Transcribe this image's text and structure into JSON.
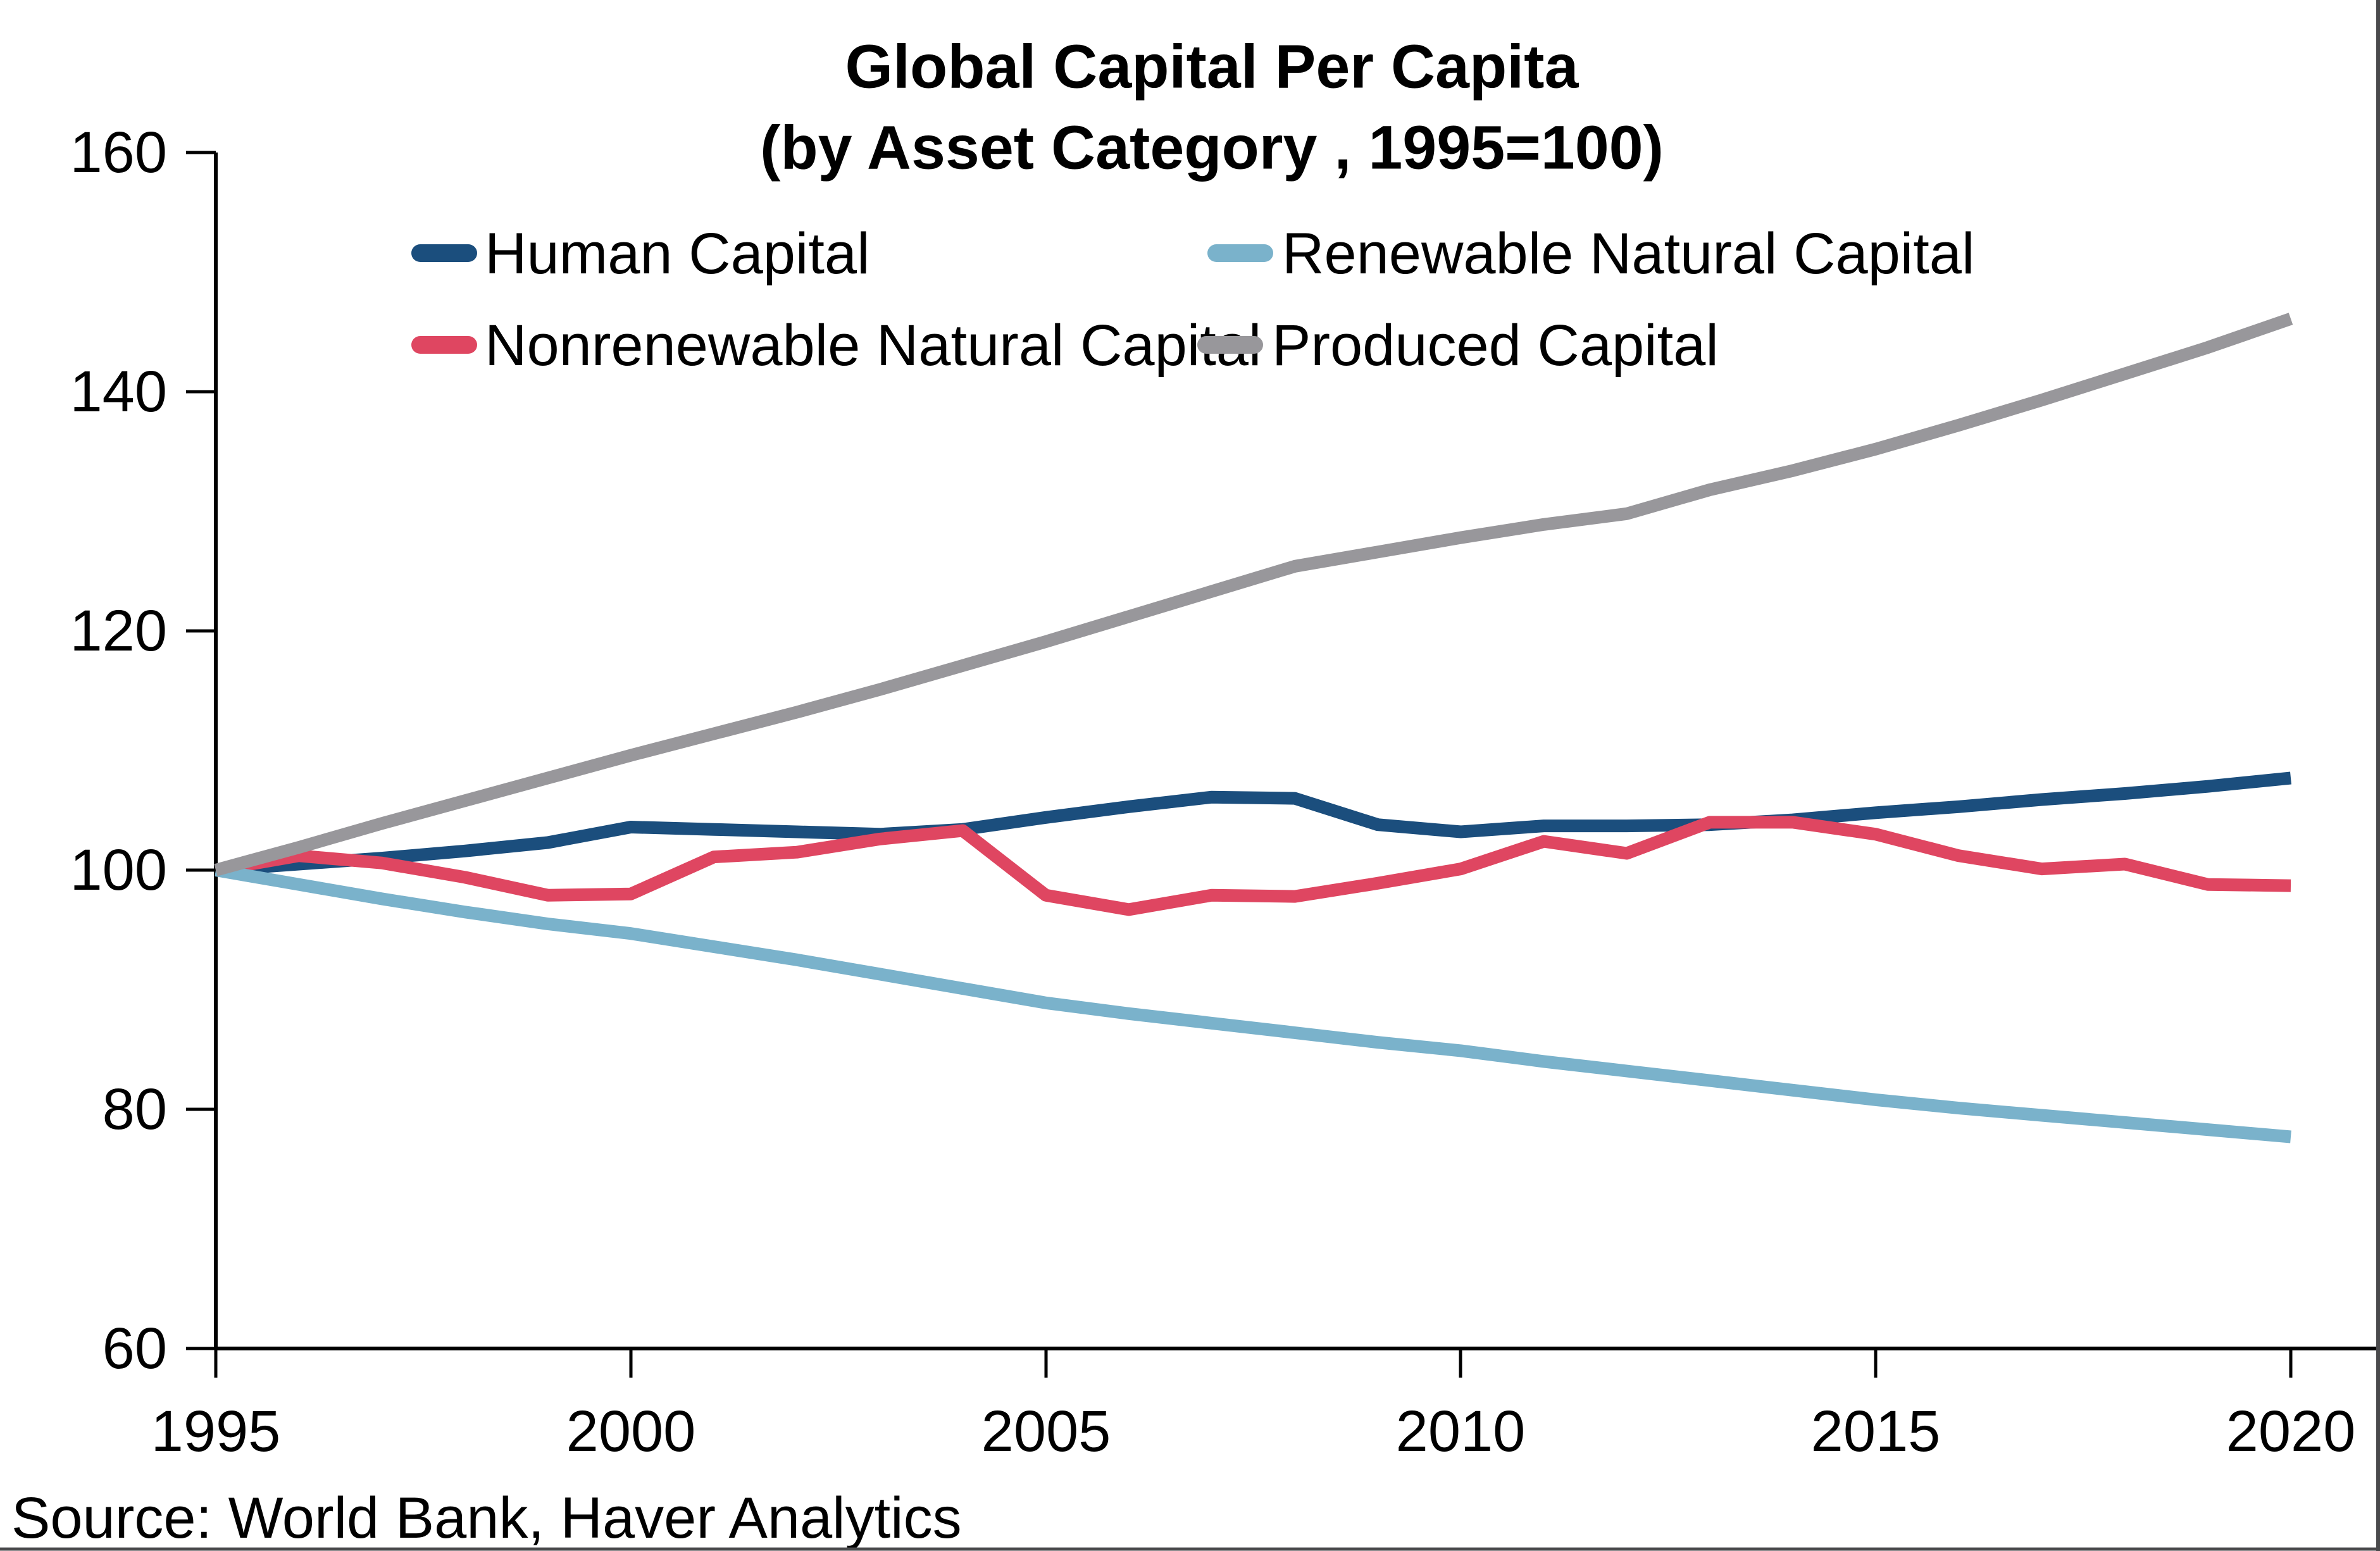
{
  "title": {
    "line1": "Global Capital Per Capita",
    "line2": "(by Asset Category , 1995=100)"
  },
  "source": "Source: World Bank, Haver Analytics",
  "colors": {
    "background": "#ffffff",
    "axis": "#000000",
    "frame_border": "#4a4a4c",
    "human_capital": "#1b4e7d",
    "nonrenewable_natural_capital": "#df4661",
    "renewable_natural_capital": "#7ab2cb",
    "produced_capital": "#98979b"
  },
  "chart_data": {
    "type": "line",
    "title": "Global Capital Per Capita",
    "subtitle": "(by Asset Category , 1995=100)",
    "xlabel": "",
    "ylabel": "",
    "ylim": [
      60,
      160
    ],
    "grid": false,
    "legend_position": "top",
    "x": [
      1995,
      1996,
      1997,
      1998,
      1999,
      2000,
      2001,
      2002,
      2003,
      2004,
      2005,
      2006,
      2007,
      2008,
      2009,
      2010,
      2011,
      2012,
      2013,
      2014,
      2015,
      2016,
      2017,
      2018,
      2019,
      2020
    ],
    "xticks": [
      1995,
      2000,
      2005,
      2010,
      2015,
      2020
    ],
    "yticks": [
      160,
      140,
      120,
      100,
      80,
      60
    ],
    "series": [
      {
        "id": "human-capital",
        "name": "Human Capital",
        "color": "#1b4e7d",
        "values": [
          100,
          100.5,
          101,
          101.6,
          102.3,
          103.6,
          103.4,
          103.2,
          103,
          103.4,
          104.4,
          105.3,
          106.1,
          106,
          103.8,
          103.2,
          103.7,
          103.7,
          103.8,
          104.2,
          104.8,
          105.3,
          105.9,
          106.4,
          107,
          107.7
        ]
      },
      {
        "id": "nonrenewable-natural-capital",
        "name": "Nonrenewable Natural Capital",
        "color": "#df4661",
        "values": [
          100,
          101.2,
          100.6,
          99.4,
          97.9,
          98,
          101.1,
          101.5,
          102.6,
          103.3,
          97.9,
          96.7,
          97.9,
          97.8,
          98.9,
          100.1,
          102.4,
          101.4,
          104,
          104,
          103,
          101.2,
          100.1,
          100.5,
          98.8,
          98.7
        ]
      },
      {
        "id": "renewable-natural-capital",
        "name": "Renewable Natural Capital",
        "color": "#7ab2cb",
        "values": [
          100,
          98.8,
          97.6,
          96.5,
          95.5,
          94.7,
          93.6,
          92.5,
          91.3,
          90.1,
          88.9,
          88,
          87.2,
          86.4,
          85.6,
          84.9,
          84,
          83.2,
          82.4,
          81.6,
          80.8,
          80.1,
          79.5,
          78.9,
          78.3,
          77.7
        ]
      },
      {
        "id": "produced-capital",
        "name": "Produced Capital",
        "color": "#98979b",
        "values": [
          100,
          101.9,
          103.9,
          105.8,
          107.7,
          109.6,
          111.4,
          113.2,
          115.1,
          117.1,
          119.1,
          121.2,
          123.3,
          125.4,
          126.6,
          127.8,
          128.9,
          129.8,
          131.8,
          133.4,
          135.2,
          137.2,
          139.3,
          141.5,
          143.7,
          146.1
        ]
      }
    ]
  }
}
